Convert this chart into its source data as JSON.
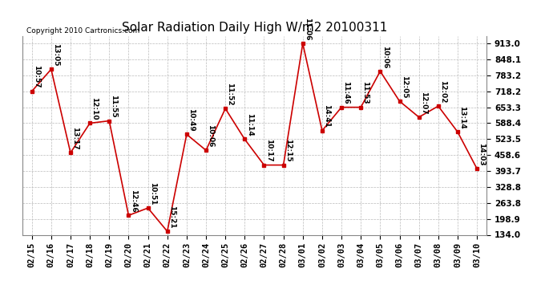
{
  "title": "Solar Radiation Daily High W/m2 20100311",
  "copyright": "Copyright 2010 Cartronics.com",
  "background_color": "#ffffff",
  "plot_bg_color": "#ffffff",
  "grid_color": "#bbbbbb",
  "line_color": "#cc0000",
  "marker_color": "#cc0000",
  "dates": [
    "02/15",
    "02/16",
    "02/17",
    "02/18",
    "02/19",
    "02/20",
    "02/21",
    "02/22",
    "02/23",
    "02/24",
    "02/25",
    "02/26",
    "02/27",
    "02/28",
    "03/01",
    "03/02",
    "03/03",
    "03/04",
    "03/05",
    "03/06",
    "03/07",
    "03/08",
    "03/09",
    "03/10"
  ],
  "values": [
    718.2,
    808.0,
    468.0,
    588.4,
    598.0,
    213.0,
    243.0,
    148.0,
    543.0,
    478.0,
    648.0,
    523.0,
    418.0,
    418.0,
    913.0,
    558.0,
    653.3,
    653.3,
    800.0,
    678.0,
    613.0,
    658.0,
    553.0,
    403.0
  ],
  "labels": [
    "10:57",
    "13:05",
    "13:17",
    "12:10",
    "11:55",
    "12:46",
    "10:51",
    "15:21",
    "10:49",
    "10:06",
    "11:52",
    "11:14",
    "10:17",
    "12:15",
    "11:06",
    "14:41",
    "11:46",
    "11:53",
    "10:06",
    "12:05",
    "12:07",
    "12:02",
    "13:14",
    "14:03"
  ],
  "ylim_min": 134.0,
  "ylim_max": 913.0,
  "yticks": [
    134.0,
    198.9,
    263.8,
    328.8,
    393.7,
    458.6,
    523.5,
    588.4,
    653.3,
    718.2,
    783.2,
    848.1,
    913.0
  ],
  "title_fontsize": 11,
  "label_fontsize": 6.5,
  "tick_fontsize": 7.5,
  "copyright_fontsize": 6.5
}
